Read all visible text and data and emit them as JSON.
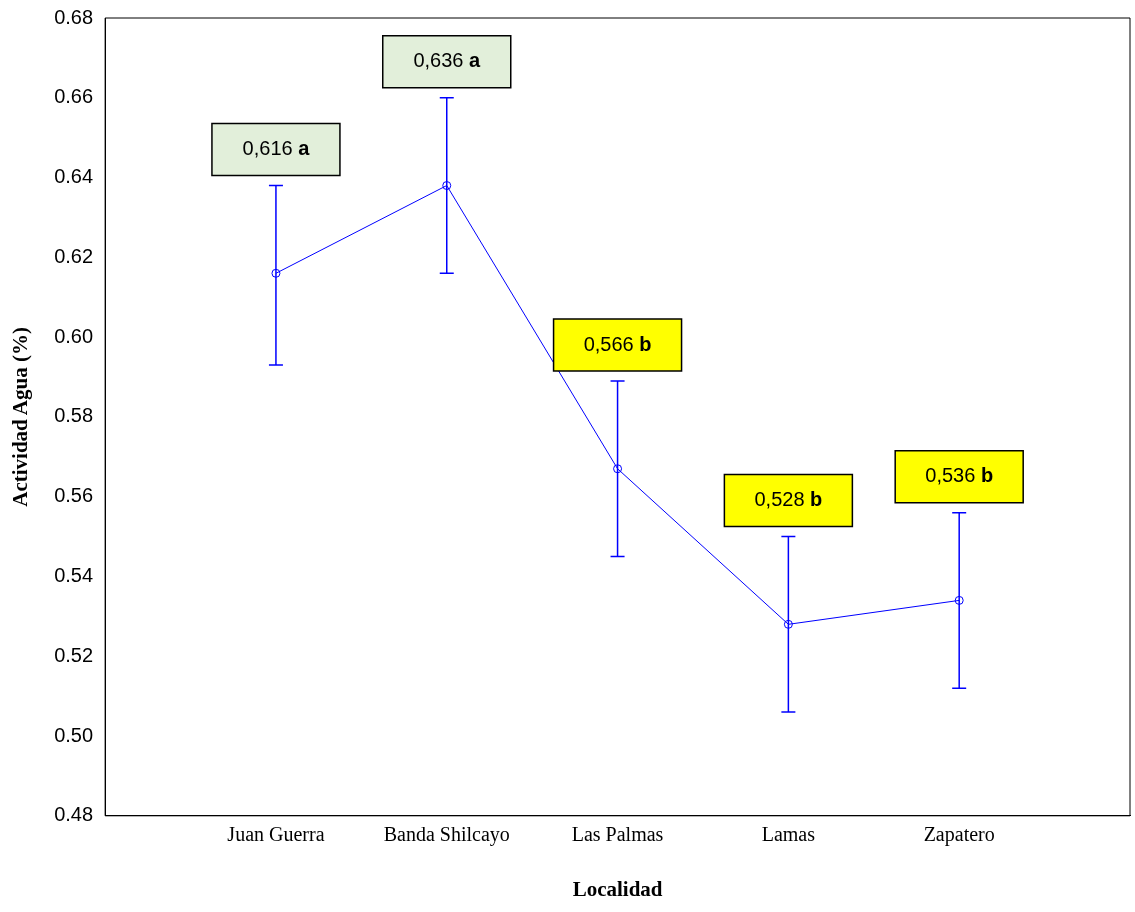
{
  "chart_data": {
    "type": "line",
    "xlabel": "Localidad",
    "ylabel": "Actividad Agua (%)",
    "categories": [
      "Juan Guerra",
      "Banda Shilcayo",
      "Las Palmas",
      "Lamas",
      "Zapatero"
    ],
    "series": [
      {
        "color": "#0000ff",
        "values": [
          0.616,
          0.638,
          0.567,
          0.528,
          0.534
        ],
        "errors": [
          [
            0.593,
            0.638
          ],
          [
            0.616,
            0.66
          ],
          [
            0.545,
            0.589
          ],
          [
            0.506,
            0.55
          ],
          [
            0.512,
            0.556
          ]
        ]
      }
    ],
    "ylim": [
      0.48,
      0.68
    ],
    "yticks": [
      0.48,
      {
        "value": 0.5,
        "label": "0.50"
      },
      0.52,
      0.54,
      0.56,
      0.58,
      {
        "value": 0.6,
        "label": "0.60"
      },
      0.62,
      0.64,
      0.66,
      0.68
    ],
    "grid": false,
    "legend": false,
    "marker": "circle",
    "line_style": "solid",
    "annotations": [
      "0,616 a",
      "0,636 a",
      "0,566 b",
      "0,528 b",
      "0,536 b"
    ]
  }
}
